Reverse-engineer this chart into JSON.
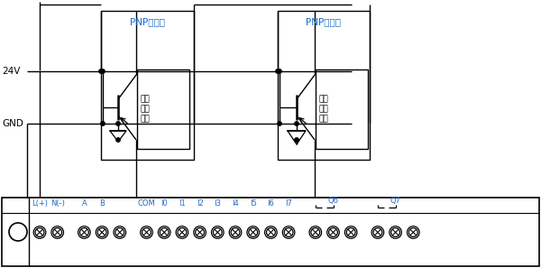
{
  "bg_color": "#ffffff",
  "line_color": "#000000",
  "text_color_blue": "#1a6bcc",
  "label_24V": "24V",
  "label_GND": "GND",
  "label_pnp3": "PNP三线制",
  "label_pnp2": "PNP二线制",
  "label_circuit": "开关\n输入\n电路",
  "label_Q6": "Q6",
  "label_Q7": "Q7",
  "term_labels": [
    "L(+)",
    "N(-)",
    "A",
    "B",
    "COM",
    "I0",
    "I1",
    "I2",
    "I3",
    "I4",
    "I5",
    "I6",
    "I7"
  ]
}
